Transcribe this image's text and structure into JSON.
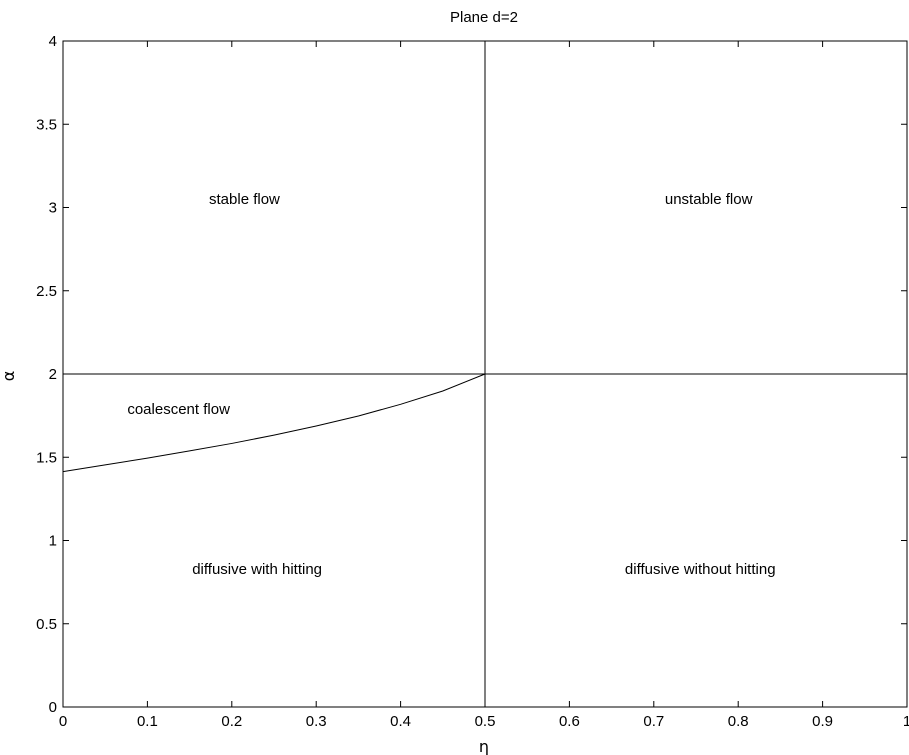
{
  "chart_data": {
    "type": "line",
    "title": "Plane d=2",
    "xlabel": "η",
    "ylabel": "α",
    "xlim": [
      0,
      1
    ],
    "ylim": [
      0,
      4
    ],
    "xticks": [
      0,
      0.1,
      0.2,
      0.3,
      0.4,
      0.5,
      0.6,
      0.7,
      0.8,
      0.9,
      1
    ],
    "xtick_labels": [
      "0",
      "0.1",
      "0.2",
      "0.3",
      "0.4",
      "0.5",
      "0.6",
      "0.7",
      "0.8",
      "0.9",
      "1"
    ],
    "yticks": [
      0,
      0.5,
      1,
      1.5,
      2,
      2.5,
      3,
      3.5,
      4
    ],
    "ytick_labels": [
      "0",
      "0.5",
      "1",
      "1.5",
      "2",
      "2.5",
      "3",
      "3.5",
      "4"
    ],
    "grid": false,
    "legend": "none",
    "line_color": "#000000",
    "series": [
      {
        "x": [
          0,
          0.05,
          0.1,
          0.15,
          0.2,
          0.25,
          0.3,
          0.35,
          0.4,
          0.45,
          0.5
        ],
        "y": [
          1.414,
          1.454,
          1.495,
          1.538,
          1.583,
          1.633,
          1.688,
          1.748,
          1.818,
          1.898,
          2.0
        ]
      },
      {
        "x": [
          0,
          1
        ],
        "y": [
          2,
          2
        ]
      },
      {
        "x": [
          0.5,
          0.5
        ],
        "y": [
          0,
          4
        ]
      }
    ],
    "annotations": [
      {
        "text": "stable flow",
        "x": 0.215,
        "y": 3.02
      },
      {
        "text": "unstable flow",
        "x": 0.765,
        "y": 3.02
      },
      {
        "text": "coalescent flow",
        "x": 0.137,
        "y": 1.76
      },
      {
        "text": "diffusive with hitting",
        "x": 0.23,
        "y": 0.8
      },
      {
        "text": "diffusive without hitting",
        "x": 0.755,
        "y": 0.8
      }
    ]
  }
}
